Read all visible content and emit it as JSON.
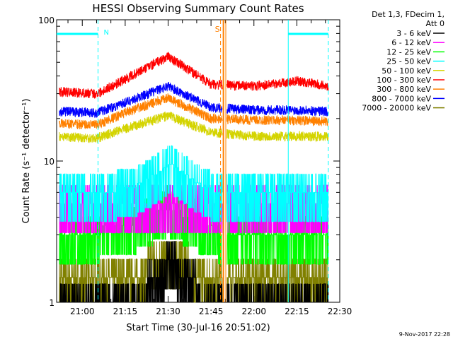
{
  "chart_data": {
    "type": "line",
    "title": "HESSI Observing Summary Count Rates",
    "xlabel": "Start Time (30-Jul-16 20:51:02)",
    "ylabel": "Count Rate (s⁻¹ detector⁻¹)",
    "y_scale": "log",
    "ylim": [
      1,
      100
    ],
    "xlim": [
      "20:51:02",
      "22:30:00"
    ],
    "x_ticks": [
      "21:00",
      "21:15",
      "21:30",
      "21:45",
      "22:00",
      "22:15",
      "22:30"
    ],
    "y_ticks": [
      "1",
      "10",
      "100"
    ],
    "grid": false,
    "legend_header": [
      "Det 1,3, FDecim 1,",
      "Att 0"
    ],
    "legend_position": "right",
    "footer_date": "9-Nov-2017 22:28",
    "annotations": {
      "night_label": "N",
      "saa_label": "S",
      "night_intervals": [
        [
          "20:51:02",
          "21:05:30"
        ],
        [
          "22:12:00",
          "22:26:00"
        ]
      ],
      "saa_lines": [
        "21:48:20",
        "21:49:20",
        "21:50:10"
      ],
      "data_gap": [
        "21:49:00",
        "21:50:30"
      ]
    },
    "series": [
      {
        "name": "3 - 6 keV",
        "color": "#000000",
        "peak_time": "21:31",
        "peak_width_min": 6,
        "points": [
          [
            "20:52",
            1
          ],
          [
            "21:05",
            1
          ],
          [
            "21:20",
            1
          ],
          [
            "21:25",
            1.5
          ],
          [
            "21:31",
            1.9
          ],
          [
            "21:37",
            1.5
          ],
          [
            "21:43",
            1
          ],
          [
            "22:00",
            1
          ],
          [
            "22:26",
            1
          ]
        ]
      },
      {
        "name": "6 - 12 keV",
        "color": "#ff00ff",
        "peak_time": "21:31",
        "peak_width_min": 10,
        "points": [
          [
            "20:52",
            4.8
          ],
          [
            "21:05",
            4.8
          ],
          [
            "21:20",
            4.9
          ],
          [
            "21:31",
            5.2
          ],
          [
            "21:45",
            4.9
          ],
          [
            "22:00",
            4.8
          ],
          [
            "22:26",
            4.8
          ]
        ]
      },
      {
        "name": "12 - 25 keV",
        "color": "#00ff00",
        "peak_time": "21:30",
        "peak_width_min": 10,
        "points": [
          [
            "20:52",
            3.2
          ],
          [
            "21:05",
            3.2
          ],
          [
            "21:20",
            3.8
          ],
          [
            "21:30",
            4.8
          ],
          [
            "21:40",
            3.8
          ],
          [
            "21:48",
            3.2
          ],
          [
            "22:00",
            3.2
          ],
          [
            "22:26",
            3.2
          ]
        ]
      },
      {
        "name": "25 - 50 keV",
        "color": "#00ffff",
        "peak_time": "21:31",
        "peak_width_min": 8,
        "points": [
          [
            "20:52",
            5.8
          ],
          [
            "21:05",
            5.8
          ],
          [
            "21:20",
            6.8
          ],
          [
            "21:31",
            9.6
          ],
          [
            "21:40",
            7
          ],
          [
            "21:48",
            5.8
          ],
          [
            "22:00",
            5.8
          ],
          [
            "22:26",
            5.8
          ]
        ]
      },
      {
        "name": "50 - 100 keV",
        "color": "#d4d400",
        "peak_time": "21:30",
        "peak_width_min": 12,
        "points": [
          [
            "20:52",
            15
          ],
          [
            "21:05",
            14.5
          ],
          [
            "21:15",
            17
          ],
          [
            "21:30",
            21
          ],
          [
            "21:45",
            16
          ],
          [
            "22:00",
            15
          ],
          [
            "22:15",
            15
          ],
          [
            "22:26",
            15
          ]
        ]
      },
      {
        "name": "100 - 300 keV",
        "color": "#ff0000",
        "peak_time": "21:30",
        "peak_width_min": 12,
        "points": [
          [
            "20:52",
            31
          ],
          [
            "21:05",
            30
          ],
          [
            "21:15",
            38
          ],
          [
            "21:30",
            55
          ],
          [
            "21:45",
            35
          ],
          [
            "22:00",
            34
          ],
          [
            "22:15",
            37
          ],
          [
            "22:26",
            34
          ]
        ]
      },
      {
        "name": "300 - 800 keV",
        "color": "#ff8000",
        "peak_time": "21:30",
        "peak_width_min": 12,
        "points": [
          [
            "20:52",
            18.5
          ],
          [
            "21:05",
            18
          ],
          [
            "21:15",
            22
          ],
          [
            "21:30",
            28
          ],
          [
            "21:45",
            20
          ],
          [
            "22:00",
            19.5
          ],
          [
            "22:15",
            19.5
          ],
          [
            "22:26",
            19
          ]
        ]
      },
      {
        "name": "800 - 7000 keV",
        "color": "#0000ff",
        "peak_time": "21:30",
        "peak_width_min": 12,
        "points": [
          [
            "20:52",
            22.5
          ],
          [
            "21:05",
            22
          ],
          [
            "21:15",
            26
          ],
          [
            "21:30",
            34
          ],
          [
            "21:45",
            24
          ],
          [
            "22:00",
            23
          ],
          [
            "22:15",
            23
          ],
          [
            "22:26",
            22.5
          ]
        ]
      },
      {
        "name": "7000 - 20000 keV",
        "color": "#808000",
        "peak_time": "21:31",
        "peak_width_min": 6,
        "points": [
          [
            "20:52",
            1.35
          ],
          [
            "21:05",
            1.35
          ],
          [
            "21:20",
            1.6
          ],
          [
            "21:30",
            2.2
          ],
          [
            "21:40",
            1.6
          ],
          [
            "22:00",
            1.35
          ],
          [
            "22:26",
            1.35
          ]
        ]
      }
    ]
  }
}
